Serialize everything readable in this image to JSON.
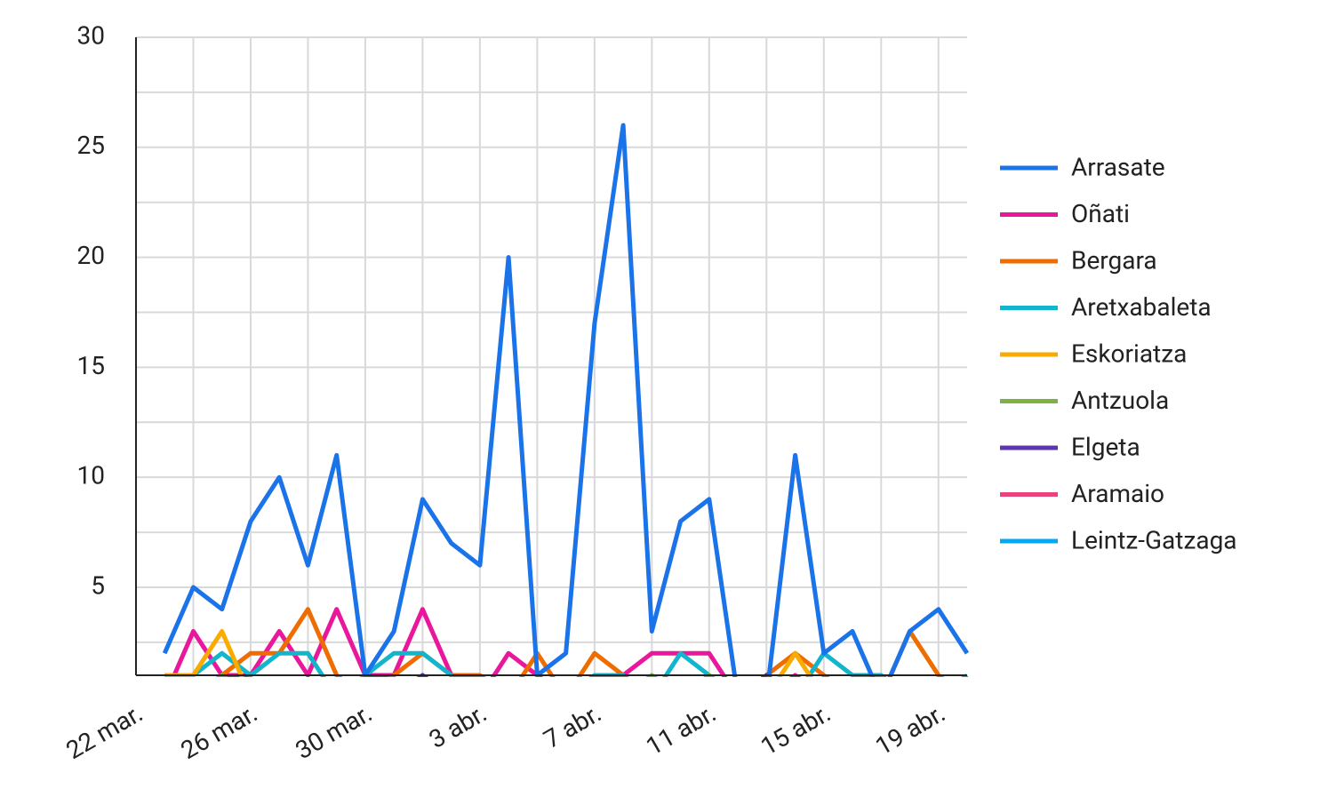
{
  "chart_data": {
    "type": "line",
    "categories": [
      "22 mar.",
      null,
      null,
      null,
      "26 mar.",
      null,
      null,
      null,
      "30 mar.",
      null,
      null,
      null,
      "3 abr.",
      null,
      null,
      null,
      "7 abr.",
      null,
      null,
      null,
      "11 abr.",
      null,
      null,
      null,
      "15 abr.",
      null,
      null,
      null,
      "19 abr.",
      null
    ],
    "ylim": [
      1,
      30
    ],
    "yticks": [
      5,
      10,
      15,
      20,
      25,
      30
    ],
    "grid": true,
    "legend": "right",
    "series": [
      {
        "name": "Arrasate",
        "color": "#1a73e8",
        "values": [
          null,
          2,
          5,
          4,
          8,
          10,
          6,
          11,
          1,
          3,
          9,
          7,
          6,
          20,
          1,
          2,
          17,
          26,
          3,
          8,
          9,
          0,
          0,
          11,
          2,
          3,
          0,
          3,
          4,
          2
        ]
      },
      {
        "name": "Oñati",
        "color": "#e8179b",
        "values": [
          null,
          0,
          3,
          1,
          1,
          3,
          1,
          4,
          1,
          1,
          4,
          1,
          0,
          2,
          1,
          0,
          0,
          1,
          2,
          2,
          2,
          0,
          0,
          1,
          0,
          0,
          0,
          0,
          0,
          0
        ]
      },
      {
        "name": "Bergara",
        "color": "#ef6c00",
        "values": [
          null,
          0,
          0,
          1,
          2,
          2,
          4,
          1,
          0,
          1,
          2,
          1,
          1,
          0,
          2,
          0,
          2,
          1,
          0,
          0,
          0,
          0,
          1,
          2,
          1,
          0,
          0,
          3,
          1,
          0
        ]
      },
      {
        "name": "Aretxabaleta",
        "color": "#12b5cb",
        "values": [
          null,
          1,
          1,
          2,
          1,
          2,
          2,
          0,
          1,
          2,
          2,
          1,
          0,
          0,
          0,
          0,
          1,
          1,
          0,
          2,
          1,
          0,
          0,
          0,
          2,
          1,
          1,
          0,
          0,
          1
        ]
      },
      {
        "name": "Eskoriatza",
        "color": "#f9ab00",
        "values": [
          null,
          1,
          1,
          3,
          0,
          0,
          0,
          0,
          0,
          0,
          0,
          0,
          0,
          0,
          0,
          0,
          0,
          0,
          0,
          0,
          0,
          0,
          0,
          2,
          0,
          0,
          0,
          0,
          0,
          0
        ]
      },
      {
        "name": "Antzuola",
        "color": "#7cb342",
        "values": [
          null,
          0,
          0,
          1,
          0,
          0,
          0,
          0,
          0,
          0,
          0,
          0,
          0,
          0,
          0,
          0,
          0,
          0,
          1,
          0,
          1,
          0,
          0,
          0,
          0,
          0,
          0,
          0,
          0,
          0
        ]
      },
      {
        "name": "Elgeta",
        "color": "#5e35b1",
        "values": [
          null,
          0,
          0,
          0,
          0,
          0,
          0,
          0,
          0,
          0,
          1,
          0,
          0,
          0,
          0,
          0,
          0,
          0,
          0,
          0,
          0,
          0,
          1,
          0,
          0,
          0,
          0,
          0,
          0,
          0
        ]
      },
      {
        "name": "Aramaio",
        "color": "#e8437a",
        "values": [
          null,
          0,
          0,
          0,
          0,
          0,
          0,
          0,
          0,
          0,
          0,
          0,
          0,
          0,
          0,
          0,
          0,
          0,
          0,
          0,
          0,
          0,
          0,
          0,
          0,
          0,
          0,
          0,
          0,
          0
        ]
      },
      {
        "name": "Leintz-Gatzaga",
        "color": "#03a9f4",
        "values": [
          null,
          0,
          0,
          0,
          0,
          0,
          0,
          0,
          0,
          0,
          0,
          0,
          0,
          0,
          0,
          0,
          0,
          0,
          0,
          0,
          0,
          0,
          0,
          0,
          0,
          0,
          0,
          0,
          0,
          0
        ]
      }
    ]
  }
}
